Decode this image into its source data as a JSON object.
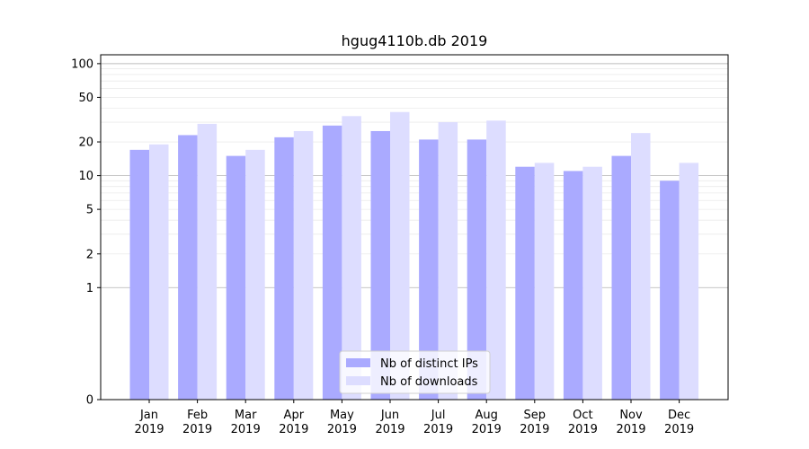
{
  "chart_data": {
    "type": "bar",
    "title": "hgug4110b.db 2019",
    "xlabel": "",
    "ylabel": "",
    "yscale": "symlog",
    "ylim": [
      0,
      120
    ],
    "yticks": [
      0,
      1,
      2,
      5,
      10,
      20,
      50,
      100
    ],
    "grid": true,
    "legend_position": "lower-center",
    "categories": [
      [
        "Jan",
        "2019"
      ],
      [
        "Feb",
        "2019"
      ],
      [
        "Mar",
        "2019"
      ],
      [
        "Apr",
        "2019"
      ],
      [
        "May",
        "2019"
      ],
      [
        "Jun",
        "2019"
      ],
      [
        "Jul",
        "2019"
      ],
      [
        "Aug",
        "2019"
      ],
      [
        "Sep",
        "2019"
      ],
      [
        "Oct",
        "2019"
      ],
      [
        "Nov",
        "2019"
      ],
      [
        "Dec",
        "2019"
      ]
    ],
    "series": [
      {
        "name": "Nb of distinct IPs",
        "color": "#aaaaff",
        "values": [
          17,
          23,
          15,
          22,
          28,
          25,
          21,
          21,
          12,
          11,
          15,
          9
        ]
      },
      {
        "name": "Nb of downloads",
        "color": "#ddddff",
        "values": [
          19,
          29,
          17,
          25,
          34,
          37,
          30,
          31,
          13,
          12,
          24,
          13
        ]
      }
    ]
  }
}
